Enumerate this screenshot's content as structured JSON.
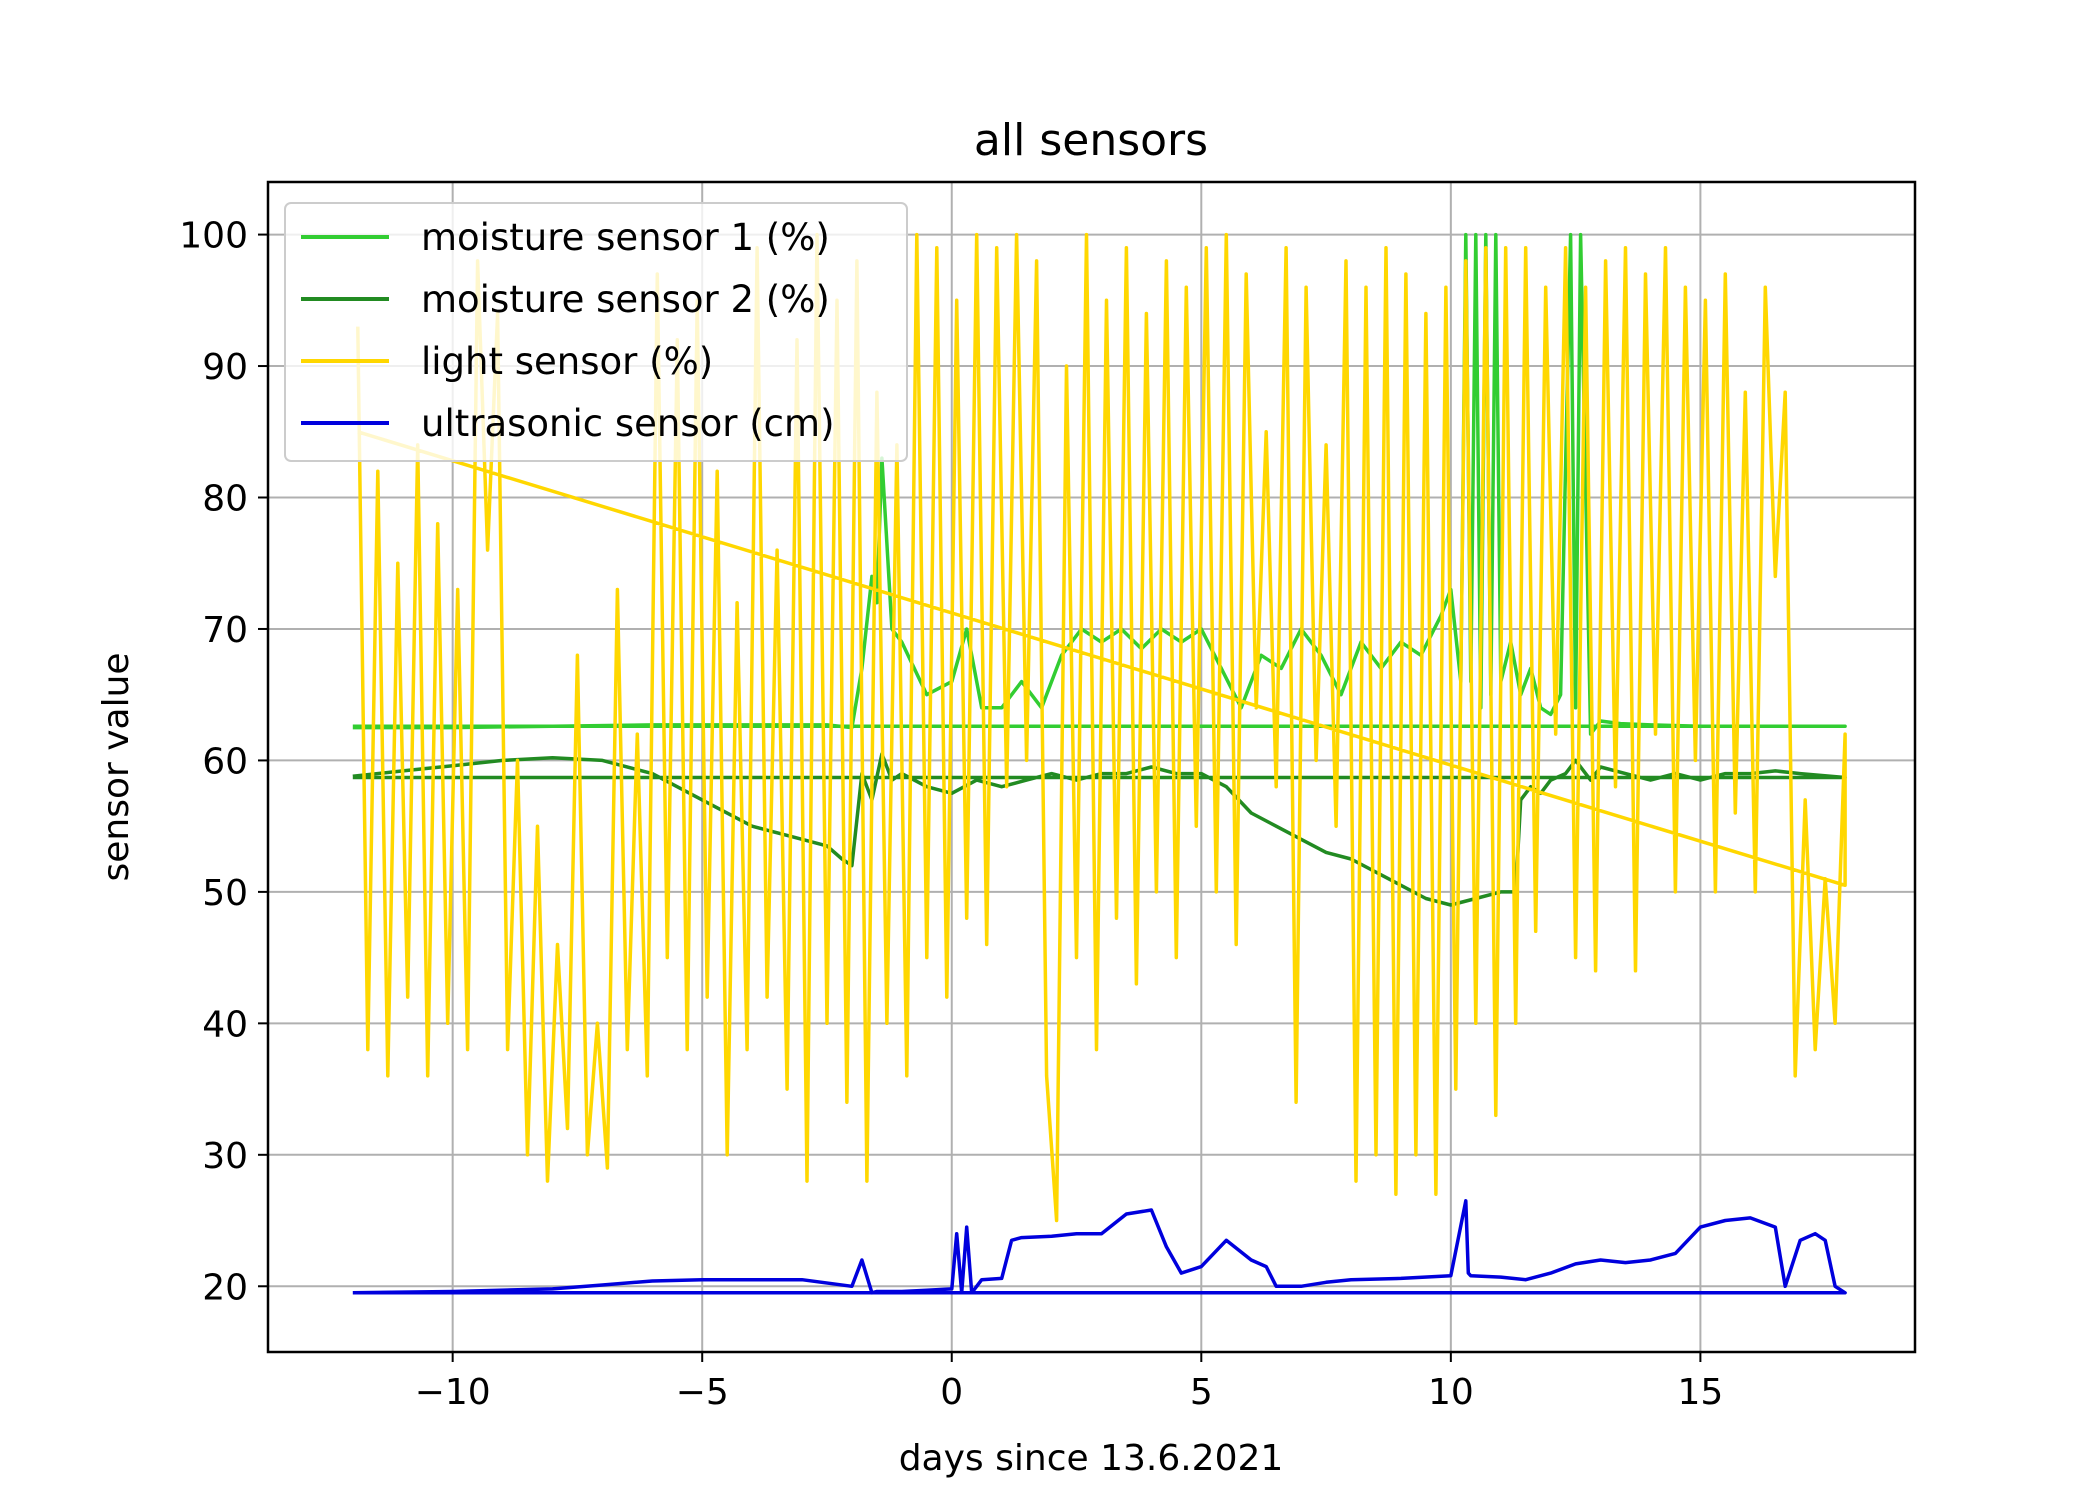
{
  "chart_data": {
    "type": "line",
    "title": "all sensors",
    "xlabel": "days since 13.6.2021",
    "ylabel": "sensor value",
    "xlim": [
      -13.7,
      19.3
    ],
    "ylim": [
      15,
      104
    ],
    "xticks": [
      -10,
      -5,
      0,
      5,
      10,
      15
    ],
    "xtick_labels": [
      "−10",
      "−5",
      "0",
      "5",
      "10",
      "15"
    ],
    "yticks": [
      20,
      30,
      40,
      50,
      60,
      70,
      80,
      90,
      100
    ],
    "ytick_labels": [
      "20",
      "30",
      "40",
      "50",
      "60",
      "70",
      "80",
      "90",
      "100"
    ],
    "grid": true,
    "legend_position": "top-left",
    "series": [
      {
        "name": "moisture sensor 1 (%)",
        "color": "#32cd32",
        "x": [
          -12.0,
          -10.0,
          -8.0,
          -6.0,
          -4.0,
          -2.5,
          -2.0,
          -1.8,
          -1.6,
          -1.5,
          -1.4,
          -1.2,
          -1.0,
          -0.5,
          0.0,
          0.3,
          0.6,
          1.0,
          1.4,
          1.8,
          2.2,
          2.6,
          3.0,
          3.4,
          3.8,
          4.2,
          4.6,
          5.0,
          5.4,
          5.8,
          6.2,
          6.6,
          7.0,
          7.4,
          7.8,
          8.2,
          8.6,
          9.0,
          9.4,
          9.8,
          10.0,
          10.2,
          10.3,
          10.4,
          10.5,
          10.6,
          10.7,
          10.8,
          10.9,
          11.0,
          11.2,
          11.4,
          11.6,
          11.8,
          12.0,
          12.2,
          12.4,
          12.5,
          12.6,
          12.8,
          13.0,
          13.4,
          14.0,
          15.0,
          16.0,
          17.0,
          17.9,
          17.9,
          12.0,
          6.0,
          0.0,
          -6.0,
          -12.0
        ],
        "y": [
          62.5,
          62.5,
          62.6,
          62.7,
          62.7,
          62.7,
          62.5,
          67.0,
          74.0,
          72.0,
          83.0,
          70.0,
          69.0,
          65.0,
          66.0,
          70.0,
          64.0,
          64.0,
          66.0,
          64.0,
          68.0,
          70.0,
          69.0,
          70.0,
          68.5,
          70.0,
          69.0,
          70.0,
          67.0,
          64.0,
          68.0,
          67.0,
          70.0,
          68.0,
          65.0,
          69.0,
          67.0,
          69.0,
          68.0,
          71.0,
          73.0,
          66.0,
          100.0,
          66.0,
          100.0,
          64.0,
          100.0,
          65.0,
          100.0,
          66.0,
          69.0,
          65.0,
          67.0,
          64.0,
          63.5,
          65.0,
          100.0,
          64.0,
          100.0,
          62.0,
          63.0,
          62.8,
          62.7,
          62.6,
          62.6,
          62.6,
          62.6,
          62.6,
          62.6,
          62.6,
          62.6,
          62.6,
          62.6
        ]
      },
      {
        "name": "moisture sensor 2 (%)",
        "color": "#228b22",
        "x": [
          -12.0,
          -11.0,
          -10.0,
          -9.0,
          -8.0,
          -7.0,
          -6.0,
          -5.0,
          -4.0,
          -3.0,
          -2.5,
          -2.2,
          -2.0,
          -1.8,
          -1.6,
          -1.4,
          -1.2,
          -1.0,
          -0.5,
          0.0,
          0.5,
          1.0,
          1.5,
          2.0,
          2.5,
          3.0,
          3.5,
          4.0,
          4.5,
          5.0,
          5.5,
          6.0,
          6.5,
          7.0,
          7.5,
          8.0,
          8.5,
          9.0,
          9.5,
          10.0,
          10.5,
          11.0,
          11.3,
          11.4,
          11.6,
          11.8,
          12.0,
          12.3,
          12.5,
          12.8,
          13.0,
          13.5,
          14.0,
          14.5,
          15.0,
          15.5,
          16.0,
          16.5,
          17.0,
          17.9,
          17.9,
          12.0,
          6.0,
          0.0,
          -6.0,
          -12.0
        ],
        "y": [
          58.8,
          59.2,
          59.6,
          60.0,
          60.2,
          60.0,
          59.0,
          57.0,
          55.0,
          54.0,
          53.5,
          52.5,
          52.0,
          59.0,
          57.0,
          60.5,
          58.5,
          59.0,
          58.0,
          57.5,
          58.5,
          58.0,
          58.5,
          59.0,
          58.5,
          59.0,
          59.0,
          59.5,
          59.0,
          59.0,
          58.0,
          56.0,
          55.0,
          54.0,
          53.0,
          52.5,
          51.5,
          50.5,
          49.5,
          49.0,
          49.5,
          50.0,
          50.0,
          57.0,
          58.0,
          57.5,
          58.5,
          59.0,
          60.0,
          58.5,
          59.5,
          59.0,
          58.5,
          59.0,
          58.5,
          59.0,
          59.0,
          59.2,
          59.0,
          58.7,
          58.7,
          58.7,
          58.7,
          58.7,
          58.7,
          58.7
        ]
      },
      {
        "name": "light sensor (%)",
        "color": "#ffd700",
        "x": [
          -11.9,
          -11.7,
          -11.5,
          -11.3,
          -11.1,
          -10.9,
          -10.7,
          -10.5,
          -10.3,
          -10.1,
          -9.9,
          -9.7,
          -9.5,
          -9.3,
          -9.1,
          -8.9,
          -8.7,
          -8.5,
          -8.3,
          -8.1,
          -7.9,
          -7.7,
          -7.5,
          -7.3,
          -7.1,
          -6.9,
          -6.7,
          -6.5,
          -6.3,
          -6.1,
          -5.9,
          -5.7,
          -5.5,
          -5.3,
          -5.1,
          -4.9,
          -4.7,
          -4.5,
          -4.3,
          -4.1,
          -3.9,
          -3.7,
          -3.5,
          -3.3,
          -3.1,
          -2.9,
          -2.7,
          -2.5,
          -2.3,
          -2.1,
          -1.9,
          -1.7,
          -1.5,
          -1.3,
          -1.1,
          -0.9,
          -0.7,
          -0.5,
          -0.3,
          -0.1,
          0.1,
          0.3,
          0.5,
          0.7,
          0.9,
          1.1,
          1.3,
          1.5,
          1.7,
          1.9,
          2.1,
          2.3,
          2.5,
          2.7,
          2.9,
          3.1,
          3.3,
          3.5,
          3.7,
          3.9,
          4.1,
          4.3,
          4.5,
          4.7,
          4.9,
          5.1,
          5.3,
          5.5,
          5.7,
          5.9,
          6.1,
          6.3,
          6.5,
          6.7,
          6.9,
          7.1,
          7.3,
          7.5,
          7.7,
          7.9,
          8.1,
          8.3,
          8.5,
          8.7,
          8.9,
          9.1,
          9.3,
          9.5,
          9.7,
          9.9,
          10.1,
          10.3,
          10.5,
          10.7,
          10.9,
          11.1,
          11.3,
          11.5,
          11.7,
          11.9,
          12.1,
          12.3,
          12.5,
          12.7,
          12.9,
          13.1,
          13.3,
          13.5,
          13.7,
          13.9,
          14.1,
          14.3,
          14.5,
          14.7,
          14.9,
          15.1,
          15.3,
          15.5,
          15.7,
          15.9,
          16.1,
          16.3,
          16.5,
          16.7,
          16.9,
          17.1,
          17.3,
          17.5,
          17.7,
          17.9,
          17.9,
          -11.9
        ],
        "y": [
          93,
          38,
          82,
          36,
          75,
          42,
          84,
          36,
          78,
          40,
          73,
          38,
          98,
          76,
          94,
          38,
          60,
          30,
          55,
          28,
          46,
          32,
          68,
          30,
          40,
          29,
          73,
          38,
          62,
          36,
          97,
          45,
          92,
          38,
          95,
          42,
          82,
          30,
          72,
          38,
          99,
          42,
          76,
          35,
          92,
          28,
          100,
          40,
          95,
          34,
          98,
          28,
          88,
          40,
          84,
          36,
          100,
          45,
          99,
          42,
          95,
          48,
          100,
          46,
          99,
          58,
          100,
          60,
          98,
          36,
          25,
          90,
          45,
          100,
          38,
          95,
          48,
          99,
          43,
          94,
          50,
          98,
          45,
          96,
          55,
          99,
          50,
          100,
          46,
          97,
          64,
          85,
          58,
          99,
          34,
          96,
          60,
          84,
          55,
          98,
          28,
          96,
          30,
          99,
          27,
          97,
          30,
          94,
          27,
          96,
          35,
          98,
          40,
          99,
          33,
          99,
          40,
          99,
          47,
          96,
          62,
          99,
          45,
          96,
          44,
          98,
          58,
          99,
          44,
          97,
          62,
          99,
          50,
          96,
          60,
          95,
          50,
          97,
          56,
          88,
          50,
          96,
          74,
          88,
          36,
          57,
          38,
          51,
          40,
          62,
          50.5,
          85.0
        ]
      },
      {
        "name": "ultrasonic sensor (cm)",
        "color": "#0000dd",
        "x": [
          -12.0,
          -10.0,
          -8.0,
          -7.0,
          -6.0,
          -5.0,
          -4.0,
          -3.0,
          -2.0,
          -1.8,
          -1.6,
          -1.5,
          -1.0,
          -0.5,
          0.0,
          0.1,
          0.2,
          0.3,
          0.4,
          0.5,
          0.6,
          1.0,
          1.2,
          1.4,
          2.0,
          2.5,
          3.0,
          3.5,
          4.0,
          4.3,
          4.6,
          5.0,
          5.5,
          6.0,
          6.3,
          6.5,
          7.0,
          7.5,
          8.0,
          9.0,
          10.0,
          10.3,
          10.35,
          10.4,
          11.0,
          11.5,
          12.0,
          12.5,
          13.0,
          13.5,
          14.0,
          14.5,
          15.0,
          15.5,
          16.0,
          16.5,
          16.7,
          17.0,
          17.3,
          17.5,
          17.7,
          17.9,
          17.9,
          12.0,
          6.0,
          0.0,
          -6.0,
          -12.0
        ],
        "y": [
          19.5,
          19.6,
          19.8,
          20.1,
          20.4,
          20.5,
          20.5,
          20.5,
          20.0,
          22.0,
          19.5,
          19.6,
          19.6,
          19.7,
          19.8,
          24.0,
          19.5,
          24.5,
          19.5,
          20.0,
          20.5,
          20.6,
          23.5,
          23.7,
          23.8,
          24.0,
          24.0,
          25.5,
          25.8,
          23.0,
          21.0,
          21.5,
          23.5,
          22.0,
          21.5,
          20.0,
          20.0,
          20.3,
          20.5,
          20.6,
          20.8,
          26.5,
          21.0,
          20.8,
          20.7,
          20.5,
          21.0,
          21.7,
          22.0,
          21.8,
          22.0,
          22.5,
          24.5,
          25.0,
          25.2,
          24.5,
          20.0,
          23.5,
          24.0,
          23.5,
          20.0,
          19.5,
          19.5,
          19.5,
          19.5,
          19.5,
          19.5,
          19.5
        ]
      }
    ]
  }
}
